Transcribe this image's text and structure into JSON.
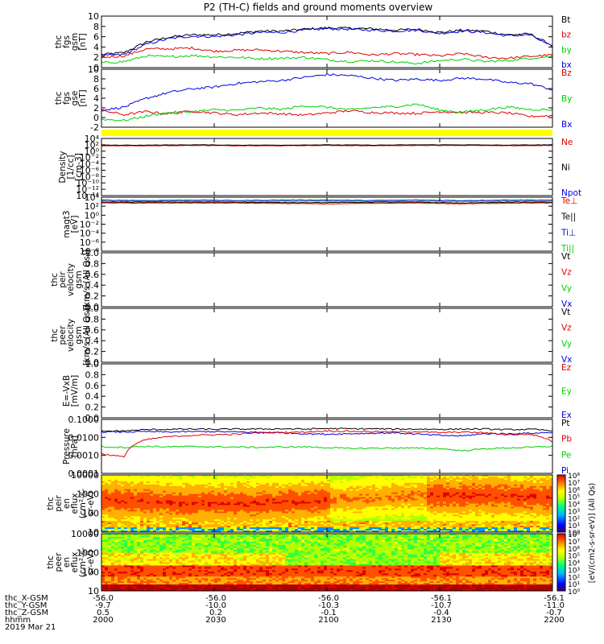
{
  "title": "P2 (TH-C) fields and ground moments overview",
  "colors": {
    "black": "#000000",
    "red": "#e00000",
    "green": "#00d000",
    "blue": "#0000e0",
    "yellow": "#ffff00"
  },
  "chart_data": [
    {
      "type": "line",
      "panel": "fgs-gsm",
      "ylabel": [
        "thc",
        "fgs",
        "gsm",
        "[nT]"
      ],
      "yticks": [
        "10",
        "8",
        "6",
        "4",
        "2",
        "0"
      ],
      "ylim": [
        -1,
        10
      ],
      "legend": [
        {
          "label": "Bt",
          "color": "black"
        },
        {
          "label": "bz",
          "color": "red"
        },
        {
          "label": "by",
          "color": "green"
        },
        {
          "label": "bx",
          "color": "blue"
        }
      ],
      "x_hours": [
        0,
        0.1,
        0.2,
        0.3,
        0.4,
        0.5,
        0.6,
        0.7,
        0.8,
        0.9,
        1.0,
        1.1,
        1.2,
        1.3,
        1.4,
        1.5,
        1.6,
        1.7,
        1.8,
        1.9,
        2.0
      ],
      "series": [
        {
          "name": "Bt",
          "color": "black",
          "values": [
            1.8,
            2.2,
            4.5,
            5.5,
            6.0,
            6.0,
            6.3,
            6.8,
            6.8,
            7.2,
            7.5,
            7.4,
            7.3,
            7.0,
            7.2,
            6.5,
            7.0,
            6.8,
            6.0,
            6.2,
            3.7
          ]
        },
        {
          "name": "bx",
          "color": "blue",
          "values": [
            1.5,
            1.8,
            4.0,
            5.2,
            5.7,
            5.6,
            6.0,
            6.5,
            6.5,
            7.0,
            7.3,
            7.2,
            7.0,
            6.8,
            7.0,
            6.3,
            6.8,
            6.5,
            5.8,
            6.0,
            3.4
          ]
        },
        {
          "name": "bz",
          "color": "red",
          "values": [
            1.2,
            1.5,
            3.0,
            3.0,
            3.2,
            2.5,
            2.7,
            2.8,
            2.5,
            2.2,
            2.0,
            2.3,
            1.7,
            2.0,
            1.8,
            1.5,
            2.0,
            1.2,
            1.0,
            1.4,
            1.7
          ]
        },
        {
          "name": "by",
          "color": "green",
          "values": [
            0.0,
            0.3,
            1.5,
            1.3,
            1.6,
            1.3,
            1.2,
            0.9,
            1.0,
            1.2,
            0.7,
            0.3,
            0.5,
            0.2,
            -0.1,
            0.5,
            0.8,
            0.3,
            0.5,
            1.0,
            1.4
          ]
        }
      ]
    },
    {
      "type": "line",
      "panel": "fgs-gse",
      "ylabel": [
        "thc",
        "fgs",
        "gse",
        "[nT]"
      ],
      "yticks": [
        "10",
        "8",
        "6",
        "4",
        "2",
        "0",
        "-2"
      ],
      "ylim": [
        -3,
        10
      ],
      "legend": [
        {
          "label": "Bz",
          "color": "red"
        },
        {
          "label": "By",
          "color": "green"
        },
        {
          "label": "Bx",
          "color": "blue"
        }
      ],
      "x_hours": [
        0,
        0.1,
        0.2,
        0.3,
        0.4,
        0.5,
        0.6,
        0.7,
        0.8,
        0.9,
        1.0,
        1.1,
        1.2,
        1.3,
        1.4,
        1.5,
        1.6,
        1.7,
        1.8,
        1.9,
        2.0
      ],
      "series": [
        {
          "name": "Bx",
          "color": "blue",
          "values": [
            0.8,
            1.5,
            3.5,
            4.8,
            5.6,
            6.0,
            6.8,
            7.2,
            7.5,
            8.2,
            8.8,
            8.6,
            8.0,
            7.5,
            7.8,
            7.5,
            8.0,
            7.8,
            7.0,
            6.8,
            5.4
          ]
        },
        {
          "name": "Bz",
          "color": "red",
          "values": [
            0.8,
            -0.2,
            0.5,
            0.0,
            0.6,
            0.2,
            -0.2,
            0.2,
            0.0,
            -0.3,
            0.2,
            0.7,
            0.3,
            0.2,
            0.1,
            0.5,
            0.3,
            0.3,
            0.2,
            -0.6,
            -0.4
          ]
        },
        {
          "name": "By",
          "color": "green",
          "values": [
            -1.2,
            -1.5,
            -0.5,
            0.3,
            0.5,
            0.9,
            0.8,
            1.3,
            1.0,
            1.8,
            1.5,
            0.9,
            1.4,
            1.6,
            2.2,
            0.8,
            0.4,
            0.9,
            1.5,
            1.0,
            0.9
          ]
        }
      ]
    },
    {
      "type": "line",
      "panel": "density",
      "ylabel": [
        "Density",
        "[1/cc]",
        "[cm-3]"
      ],
      "yticks": [
        "10⁴",
        "10²",
        "10⁰",
        "10⁻²",
        "10⁻⁴",
        "10⁻⁶",
        "10⁻⁸",
        "10⁻¹⁰",
        "10⁻¹²",
        "10⁻¹⁴"
      ],
      "ylim": [
        -14,
        4
      ],
      "yscale": "log",
      "legend": [
        {
          "label": "Ne",
          "color": "red"
        },
        {
          "label": "Ni",
          "color": "black"
        },
        {
          "label": "Npot",
          "color": "blue"
        }
      ],
      "series": [
        {
          "name": "Ne",
          "color": "red",
          "log_values": [
            1.7,
            1.7,
            1.8,
            1.7,
            1.7,
            1.8,
            1.7,
            1.8,
            1.8,
            1.7,
            1.8
          ]
        },
        {
          "name": "Ni",
          "color": "black",
          "log_values": [
            1.9,
            1.9,
            2.0,
            1.9,
            1.9,
            2.0,
            1.9,
            2.0,
            2.0,
            1.9,
            2.0
          ]
        }
      ]
    },
    {
      "type": "line",
      "panel": "temperature",
      "ylabel": [
        "magt3",
        "[eV]"
      ],
      "yticks": [
        "10⁴",
        "10²",
        "10⁰",
        "10⁻²",
        "10⁻⁴",
        "10⁻⁶",
        "10⁻⁸"
      ],
      "ylim": [
        -9,
        4
      ],
      "yscale": "log",
      "legend": [
        {
          "label": "Te⊥",
          "color": "red"
        },
        {
          "label": "Te||",
          "color": "black"
        },
        {
          "label": "Ti⊥",
          "color": "blue"
        },
        {
          "label": "Ti||",
          "color": "green"
        }
      ],
      "series": [
        {
          "name": "Ti⊥",
          "color": "blue",
          "log_values": [
            3.3,
            3.2,
            3.3,
            3.2,
            3.3,
            3.3,
            3.2,
            3.3,
            3.2,
            3.3,
            3.3
          ]
        },
        {
          "name": "Ti||",
          "color": "green",
          "log_values": [
            3.0,
            3.0,
            3.0,
            3.0,
            3.0,
            3.0,
            3.0,
            3.0,
            3.0,
            3.0,
            3.0
          ]
        },
        {
          "name": "Te||",
          "color": "black",
          "log_values": [
            2.8,
            2.8,
            2.8,
            2.8,
            2.7,
            2.7,
            2.8,
            2.8,
            2.6,
            2.8,
            2.8
          ]
        },
        {
          "name": "Te⊥",
          "color": "red",
          "log_values": [
            2.6,
            2.6,
            2.6,
            2.6,
            2.5,
            2.4,
            2.5,
            2.6,
            2.4,
            2.6,
            2.6
          ]
        }
      ]
    },
    {
      "type": "line",
      "panel": "peir-velocity",
      "ylabel": [
        "thc",
        "peir",
        "velocity",
        "gsm",
        "[km/s (All Qs)]"
      ],
      "yticks": [
        "1.0",
        "0.8",
        "0.6",
        "0.4",
        "0.2",
        "0.0"
      ],
      "ylim": [
        0,
        1
      ],
      "legend": [
        {
          "label": "Vt",
          "color": "black"
        },
        {
          "label": "Vz",
          "color": "red"
        },
        {
          "label": "Vy",
          "color": "green"
        },
        {
          "label": "Vx",
          "color": "blue"
        }
      ]
    },
    {
      "type": "line",
      "panel": "peer-velocity",
      "ylabel": [
        "thc",
        "peer",
        "velocity",
        "gsm",
        "[km/s (All Qs)]"
      ],
      "yticks": [
        "1.0",
        "0.8",
        "0.6",
        "0.4",
        "0.2",
        "0.0"
      ],
      "ylim": [
        0,
        1
      ],
      "legend": [
        {
          "label": "Vt",
          "color": "black"
        },
        {
          "label": "Vz",
          "color": "red"
        },
        {
          "label": "Vy",
          "color": "green"
        },
        {
          "label": "Vx",
          "color": "blue"
        }
      ]
    },
    {
      "type": "line",
      "panel": "efield",
      "ylabel": [
        "E=-VxB",
        "[mV/m]"
      ],
      "yticks": [
        "1.0",
        "0.8",
        "0.6",
        "0.4",
        "0.2",
        "0.0"
      ],
      "ylim": [
        0,
        1
      ],
      "legend": [
        {
          "label": "Ez",
          "color": "red"
        },
        {
          "label": "Ey",
          "color": "green"
        },
        {
          "label": "Ex",
          "color": "blue"
        }
      ]
    },
    {
      "type": "line",
      "panel": "pressure",
      "ylabel": [
        "Pressure",
        "[nPa]"
      ],
      "yticks": [
        "0.1000",
        "0.0100",
        "0.0010",
        "0.0001"
      ],
      "ylim": [
        -4,
        -1
      ],
      "yscale": "log",
      "legend": [
        {
          "label": "Pt",
          "color": "black"
        },
        {
          "label": "Pb",
          "color": "red"
        },
        {
          "label": "Pe",
          "color": "green"
        },
        {
          "label": "Pi",
          "color": "blue"
        }
      ],
      "x_hours": [
        0,
        0.1,
        0.2,
        0.3,
        0.4,
        0.5,
        0.6,
        0.7,
        0.8,
        0.9,
        1.0,
        1.1,
        1.2,
        1.3,
        1.4,
        1.5,
        1.6,
        1.7,
        1.8,
        1.9,
        2.0
      ],
      "series": [
        {
          "name": "Pt",
          "color": "black",
          "values": [
            0.022,
            0.023,
            0.027,
            0.028,
            0.029,
            0.028,
            0.029,
            0.029,
            0.03,
            0.029,
            0.031,
            0.03,
            0.03,
            0.029,
            0.029,
            0.028,
            0.029,
            0.029,
            0.027,
            0.028,
            0.024
          ]
        },
        {
          "name": "Pi",
          "color": "blue",
          "values": [
            0.02,
            0.02,
            0.021,
            0.02,
            0.021,
            0.021,
            0.02,
            0.019,
            0.018,
            0.016,
            0.015,
            0.016,
            0.017,
            0.018,
            0.015,
            0.013,
            0.012,
            0.016,
            0.016,
            0.017,
            0.019
          ]
        },
        {
          "name": "Pb",
          "color": "red",
          "values": [
            0.0012,
            0.0008,
            0.0075,
            0.011,
            0.013,
            0.014,
            0.015,
            0.018,
            0.019,
            0.02,
            0.023,
            0.022,
            0.021,
            0.02,
            0.021,
            0.018,
            0.02,
            0.018,
            0.014,
            0.015,
            0.006
          ]
        },
        {
          "name": "Pe",
          "color": "green",
          "values": [
            0.003,
            0.0028,
            0.0032,
            0.003,
            0.0031,
            0.003,
            0.0029,
            0.0028,
            0.0029,
            0.003,
            0.0027,
            0.0024,
            0.0025,
            0.0026,
            0.0025,
            0.0024,
            0.0018,
            0.0023,
            0.0026,
            0.0028,
            0.0032
          ]
        }
      ]
    },
    {
      "type": "heatmap",
      "panel": "peir-eflux",
      "ylabel": [
        "thc",
        "peir",
        "en",
        "eflux",
        "(cm²-s-",
        "sr-eV)"
      ],
      "yticks": [
        "10000",
        "1000",
        "100",
        "10"
      ],
      "ylim": [
        1,
        4.5
      ],
      "yscale": "log"
    },
    {
      "type": "heatmap",
      "panel": "peer-eflux",
      "ylabel": [
        "thc",
        "peer",
        "en",
        "eflux",
        "(cm²-s-",
        "sr-eV)"
      ],
      "yticks": [
        "10000",
        "1000",
        "100",
        "10"
      ],
      "ylim": [
        1,
        4.5
      ],
      "yscale": "log"
    }
  ],
  "colorbar": {
    "ticks_top": [
      "10⁸",
      "10⁷",
      "10⁶",
      "10⁵",
      "10⁴",
      "10³",
      "10²",
      "10¹",
      "10⁰"
    ],
    "ticks_bottom": [
      "10⁸",
      "10⁷",
      "10⁶",
      "10⁵",
      "10⁴",
      "10³",
      "10²",
      "10¹",
      "10⁰"
    ],
    "label": "[eV/(cm2-s-sr-eV)]  (All Qs)"
  },
  "x_axis": {
    "rows": [
      {
        "label": "thc_X-GSM",
        "values": [
          "-56.0",
          "-56.0",
          "-56.0",
          "-56.1",
          "-56.1"
        ]
      },
      {
        "label": "thc_Y-GSM",
        "values": [
          "-9.7",
          "-10.0",
          "-10.3",
          "-10.7",
          "-11.0"
        ]
      },
      {
        "label": "thc_Z-GSM",
        "values": [
          "0.5",
          "0.2",
          "-0.1",
          "-0.4",
          "-0.7"
        ]
      },
      {
        "label": "hhmm",
        "values": [
          "2000",
          "2030",
          "2100",
          "2130",
          "2200"
        ]
      }
    ],
    "date": "2019 Mar 21"
  }
}
